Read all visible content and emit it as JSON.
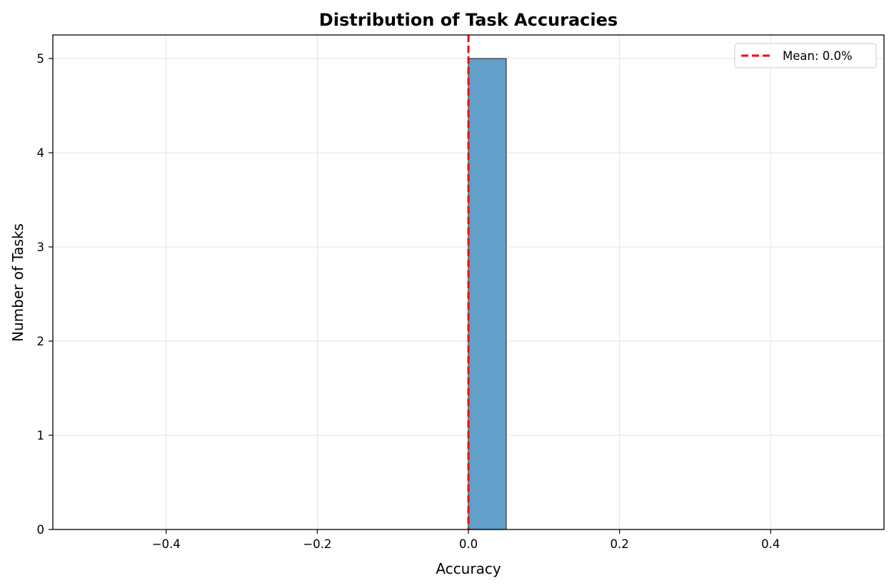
{
  "chart_data": {
    "type": "bar",
    "title": "Distribution of Task Accuracies",
    "xlabel": "Accuracy",
    "ylabel": "Number of Tasks",
    "xlim": [
      -0.55,
      0.55
    ],
    "ylim": [
      0,
      5.25
    ],
    "x_ticks": [
      -0.4,
      -0.2,
      0.0,
      0.2,
      0.4
    ],
    "x_tick_labels": [
      "−0.4",
      "−0.2",
      "0.0",
      "0.2",
      "0.4"
    ],
    "y_ticks": [
      0,
      1,
      2,
      3,
      4,
      5
    ],
    "y_tick_labels": [
      "0",
      "1",
      "2",
      "3",
      "4",
      "5"
    ],
    "bins": [
      {
        "start": 0.0,
        "end": 0.05,
        "count": 5
      }
    ],
    "mean_line": {
      "x": 0.0,
      "label": "Mean: 0.0%",
      "color": "#ff0000",
      "style": "dashed"
    },
    "bar_color": "#62a0ca",
    "bar_edge_color": "#333333",
    "grid": true,
    "legend_position": "top-right"
  }
}
